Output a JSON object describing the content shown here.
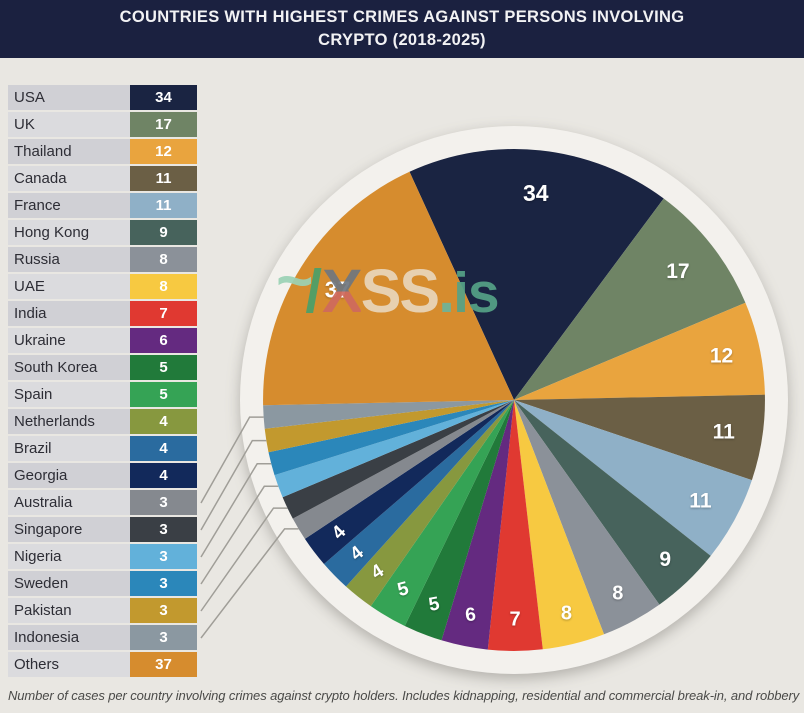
{
  "title": {
    "line1": "COUNTRIES WITH HIGHEST CRIMES AGAINST PERSONS INVOLVING",
    "line2": "CRYPTO (2018-2025)"
  },
  "caption": "Number of cases per country involving crimes against crypto holders. Includes kidnapping, residential and commercial break-in, and robbery",
  "watermark": {
    "tilde": "~",
    "slash": "/",
    "x": "X",
    "ss": "SS",
    "dot": ".",
    "is": "is"
  },
  "palette": {
    "background": "#e9e7e2",
    "title_bar": "#1b2140",
    "title_text": "#f2f2f4",
    "legend_row_bg_odd": "#d0d0d5",
    "legend_row_bg_even": "#dbdbde",
    "pie_backdrop": "#f3f1ed",
    "leader_line": "#a09e98"
  },
  "chart_data": {
    "type": "pie",
    "title": "Countries with highest crimes against persons involving crypto (2018-2025)",
    "legend_position": "left",
    "total": 200,
    "start_angle_deg": -24.6,
    "slices": [
      {
        "label": "USA",
        "value": 34,
        "color": "#1a2442"
      },
      {
        "label": "UK",
        "value": 17,
        "color": "#6f8465"
      },
      {
        "label": "Thailand",
        "value": 12,
        "color": "#e9a43e"
      },
      {
        "label": "Canada",
        "value": 11,
        "color": "#6b5f45"
      },
      {
        "label": "France",
        "value": 11,
        "color": "#8fb0c7"
      },
      {
        "label": "Hong Kong",
        "value": 9,
        "color": "#47635c"
      },
      {
        "label": "Russia",
        "value": 8,
        "color": "#8b9199"
      },
      {
        "label": "UAE",
        "value": 8,
        "color": "#f7c941"
      },
      {
        "label": "India",
        "value": 7,
        "color": "#e03931"
      },
      {
        "label": "Ukraine",
        "value": 6,
        "color": "#642a80"
      },
      {
        "label": "South Korea",
        "value": 5,
        "color": "#217a3a"
      },
      {
        "label": "Spain",
        "value": 5,
        "color": "#35a355"
      },
      {
        "label": "Netherlands",
        "value": 4,
        "color": "#87983f"
      },
      {
        "label": "Brazil",
        "value": 4,
        "color": "#2a6b9f"
      },
      {
        "label": "Georgia",
        "value": 4,
        "color": "#12295b"
      },
      {
        "label": "Australia",
        "value": 3,
        "color": "#85898f"
      },
      {
        "label": "Singapore",
        "value": 3,
        "color": "#3a3f45"
      },
      {
        "label": "Nigeria",
        "value": 3,
        "color": "#62b1da"
      },
      {
        "label": "Sweden",
        "value": 3,
        "color": "#2b87ba"
      },
      {
        "label": "Pakistan",
        "value": 3,
        "color": "#c2992e"
      },
      {
        "label": "Indonesia",
        "value": 3,
        "color": "#8b98a1"
      },
      {
        "label": "Others",
        "value": 37,
        "color": "#d68c2e"
      }
    ]
  }
}
